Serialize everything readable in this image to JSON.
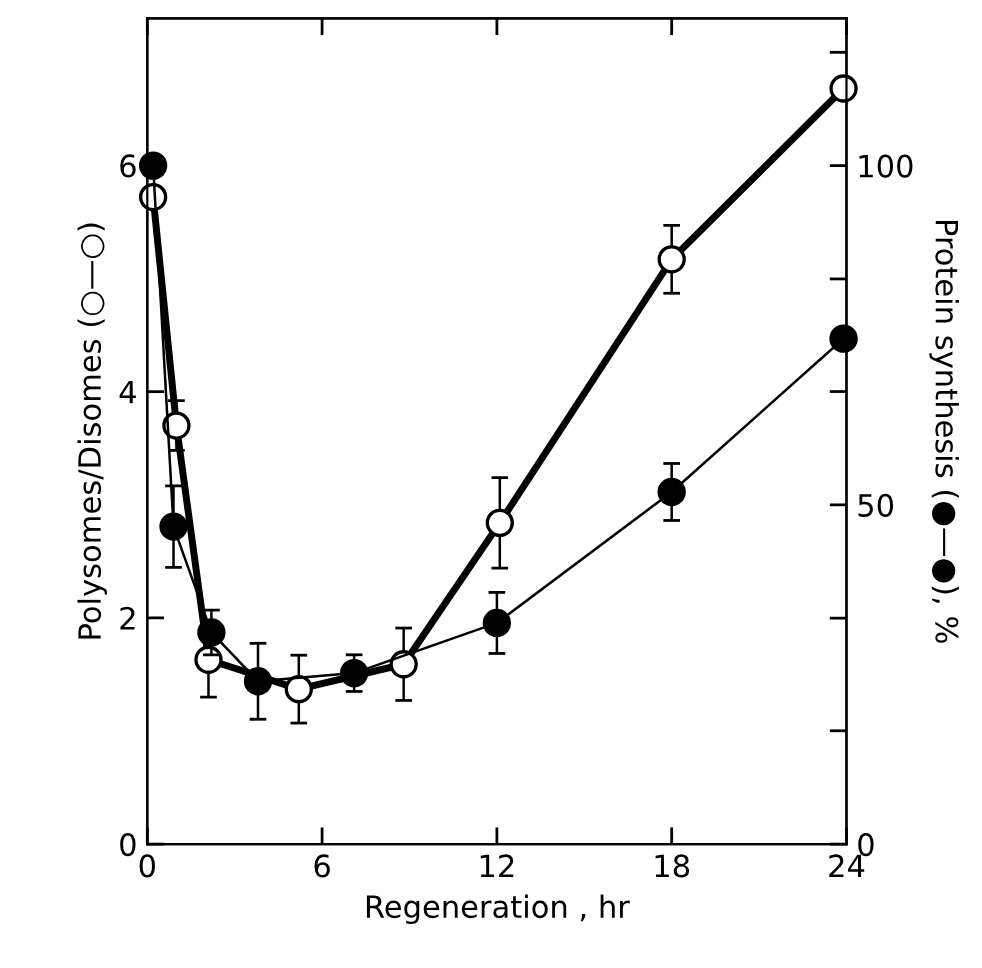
{
  "chart_data": {
    "type": "line",
    "xlabel": "Regeneration , hr",
    "ylabel": "Polysomes/Disomes (○—○)",
    "y2label": "Protein synthesis (●—●), %",
    "xlim": [
      0,
      24
    ],
    "xticks": [
      0,
      6,
      12,
      18,
      24
    ],
    "ylim": [
      0,
      7.3
    ],
    "yticks": [
      0,
      2,
      4,
      6
    ],
    "y2lim": [
      0,
      121.7
    ],
    "y2ticks": [
      0,
      {
        "value": 16.7,
        "label": null
      },
      {
        "value": 33.3,
        "label": null
      },
      50,
      {
        "value": 66.7,
        "label": null
      },
      {
        "value": 83.3,
        "label": null
      },
      100,
      {
        "value": 116.7,
        "label": null
      }
    ],
    "marker": "circle",
    "grid": false,
    "legend": false,
    "series": [
      {
        "color": "#ffffff",
        "x": [
          0.2,
          1.0,
          2.1,
          5.2,
          8.8,
          12.1,
          18.0,
          23.9
        ],
        "values": [
          5.72,
          3.7,
          1.63,
          1.37,
          1.59,
          2.84,
          5.17,
          6.68
        ],
        "errors": [
          null,
          0.22,
          0.33,
          0.3,
          0.32,
          0.4,
          0.3,
          null
        ]
      },
      {
        "color": "#000000",
        "axis": "y2",
        "x": [
          0.2,
          0.9,
          2.2,
          3.8,
          7.1,
          12.0,
          18.0,
          23.9
        ],
        "values": [
          100,
          46.8,
          31.2,
          24.0,
          25.2,
          32.6,
          51.9,
          74.5
        ],
        "errors": [
          null,
          6,
          3.3,
          5.6,
          2.7,
          4.5,
          4.2,
          null
        ]
      }
    ]
  }
}
